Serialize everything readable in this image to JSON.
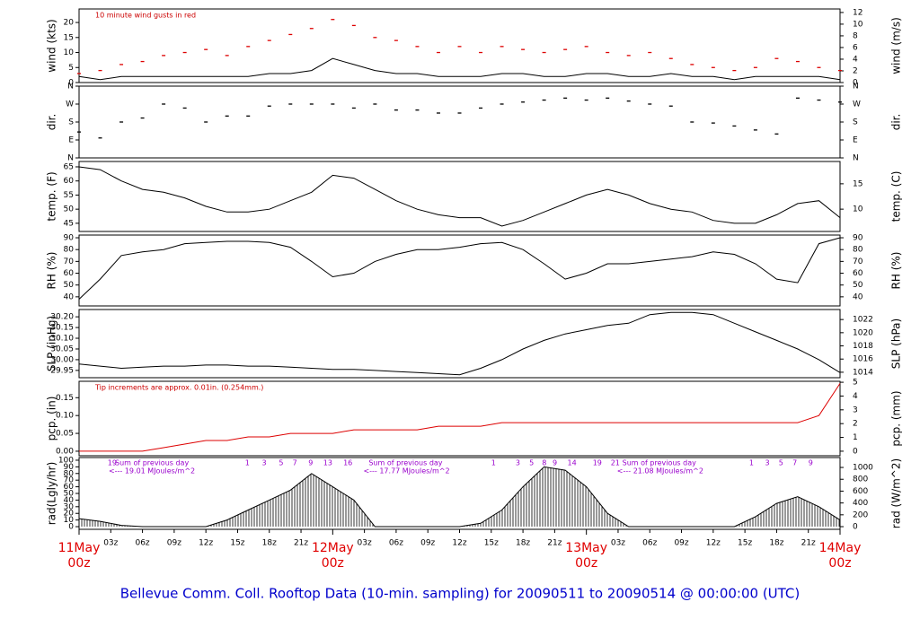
{
  "title": "Bellevue Comm. Coll. Rooftop Data (10-min. sampling) for 20090511  to  20090514 @ 00:00:00  (UTC)",
  "time_axis": {
    "x": [
      0,
      2,
      4,
      6,
      8,
      10,
      12,
      14,
      16,
      18,
      20,
      22,
      24,
      26,
      28,
      30,
      32,
      34,
      36,
      38,
      40,
      42,
      44,
      46,
      48,
      50,
      52,
      54,
      56,
      58,
      60,
      62,
      64,
      66,
      68,
      70,
      72
    ],
    "xlim": [
      0,
      72
    ],
    "xticks": [
      {
        "value": 3,
        "label": "03z"
      },
      {
        "value": 6,
        "label": "06z"
      },
      {
        "value": 9,
        "label": "09z"
      },
      {
        "value": 12,
        "label": "12z"
      },
      {
        "value": 15,
        "label": "15z"
      },
      {
        "value": 18,
        "label": "18z"
      },
      {
        "value": 21,
        "label": "21z"
      },
      {
        "value": 27,
        "label": "03z"
      },
      {
        "value": 30,
        "label": "06z"
      },
      {
        "value": 33,
        "label": "09z"
      },
      {
        "value": 36,
        "label": "12z"
      },
      {
        "value": 39,
        "label": "15z"
      },
      {
        "value": 42,
        "label": "18z"
      },
      {
        "value": 45,
        "label": "21z"
      },
      {
        "value": 51,
        "label": "03z"
      },
      {
        "value": 54,
        "label": "06z"
      },
      {
        "value": 57,
        "label": "09z"
      },
      {
        "value": 60,
        "label": "12z"
      },
      {
        "value": 63,
        "label": "15z"
      },
      {
        "value": 66,
        "label": "18z"
      },
      {
        "value": 69,
        "label": "21z"
      }
    ],
    "date_ticks": [
      {
        "value": 0,
        "date": "11May",
        "time": "00z"
      },
      {
        "value": 24,
        "date": "12May",
        "time": "00z"
      },
      {
        "value": 48,
        "date": "13May",
        "time": "00z"
      },
      {
        "value": 72,
        "date": "14May",
        "time": "00z"
      }
    ]
  },
  "chart_data": [
    {
      "type": "line",
      "ylabel": "wind (kts)",
      "y2label": "wind (m/s)",
      "note": "10  minute wind gusts in red",
      "note_color": "#cc0000",
      "ylim": [
        0,
        24.5
      ],
      "yticks": [
        0,
        5,
        10,
        15,
        20
      ],
      "y2lim": [
        0,
        12.6
      ],
      "y2ticks": [
        0,
        2,
        4,
        6,
        8,
        10,
        12
      ],
      "series": [
        {
          "style": "line",
          "color": "#000000",
          "values": [
            2,
            1,
            2,
            2,
            2,
            2,
            2,
            2,
            2,
            3,
            3,
            4,
            8,
            6,
            4,
            3,
            3,
            2,
            2,
            2,
            3,
            3,
            2,
            2,
            3,
            3,
            2,
            2,
            3,
            2,
            2,
            1,
            2,
            2,
            2,
            2,
            1
          ]
        },
        {
          "style": "dash",
          "color": "#dd0000",
          "values": [
            3,
            4,
            6,
            7,
            9,
            10,
            11,
            9,
            12,
            14,
            16,
            18,
            21,
            19,
            15,
            14,
            12,
            10,
            12,
            10,
            12,
            11,
            10,
            11,
            12,
            10,
            9,
            10,
            8,
            6,
            5,
            4,
            5,
            8,
            7,
            5,
            4
          ]
        }
      ]
    },
    {
      "type": "line",
      "ylabel": "dir.",
      "y2label": "dir.",
      "ylim": [
        0,
        360
      ],
      "yticks": [
        {
          "value": 0,
          "label": "N"
        },
        {
          "value": 90,
          "label": "E"
        },
        {
          "value": 180,
          "label": "S"
        },
        {
          "value": 270,
          "label": "W"
        },
        {
          "value": 360,
          "label": "N"
        }
      ],
      "y2lim": [
        0,
        360
      ],
      "y2ticks": [
        {
          "value": 0,
          "label": "N"
        },
        {
          "value": 90,
          "label": "E"
        },
        {
          "value": 180,
          "label": "S"
        },
        {
          "value": 270,
          "label": "W"
        },
        {
          "value": 360,
          "label": "N"
        }
      ],
      "series": [
        {
          "style": "dash",
          "color": "#000000",
          "values": [
            130,
            100,
            180,
            200,
            270,
            250,
            180,
            210,
            210,
            260,
            270,
            270,
            270,
            250,
            270,
            240,
            240,
            225,
            225,
            250,
            270,
            280,
            290,
            300,
            290,
            300,
            285,
            270,
            260,
            180,
            175,
            160,
            140,
            120,
            300,
            290,
            280
          ]
        }
      ]
    },
    {
      "type": "line",
      "ylabel": "temp. (F)",
      "y2label": "temp. (C)",
      "ylim": [
        42.1,
        66.9
      ],
      "yticks": [
        45,
        50,
        55,
        60,
        65
      ],
      "y2lim": [
        5.6,
        19.4
      ],
      "y2ticks": [
        10,
        15
      ],
      "series": [
        {
          "style": "line",
          "color": "#000000",
          "values": [
            65,
            64,
            60,
            57,
            56,
            54,
            51,
            49,
            49,
            50,
            53,
            56,
            62,
            61,
            57,
            53,
            50,
            48,
            47,
            47,
            44,
            46,
            49,
            52,
            55,
            57,
            55,
            52,
            50,
            49,
            46,
            45,
            45,
            48,
            52,
            53,
            47
          ]
        }
      ]
    },
    {
      "type": "line",
      "ylabel": "RH (%)",
      "y2label": "RH (%)",
      "ylim": [
        32.3,
        92.3
      ],
      "yticks": [
        40,
        50,
        60,
        70,
        80,
        90
      ],
      "y2lim": [
        32.3,
        92.3
      ],
      "y2ticks": [
        40,
        50,
        60,
        70,
        80,
        90
      ],
      "series": [
        {
          "style": "line",
          "color": "#000000",
          "values": [
            38,
            55,
            75,
            78,
            80,
            85,
            86,
            87,
            87,
            86,
            82,
            70,
            57,
            60,
            70,
            76,
            80,
            80,
            82,
            85,
            86,
            80,
            68,
            55,
            60,
            68,
            68,
            70,
            72,
            74,
            78,
            76,
            68,
            55,
            52,
            85,
            90
          ]
        }
      ]
    },
    {
      "type": "line",
      "ylabel": "SLP (inHg)",
      "y2label": "SLP (hPa)",
      "ylim": [
        29.916,
        30.234
      ],
      "yticks": [
        {
          "value": 29.95,
          "label": "29.95"
        },
        {
          "value": 30.0,
          "label": "30.00"
        },
        {
          "value": 30.05,
          "label": "30.05"
        },
        {
          "value": 30.1,
          "label": "30.10"
        },
        {
          "value": 30.15,
          "label": "30.15"
        },
        {
          "value": 30.2,
          "label": "30.20"
        }
      ],
      "y2lim": [
        1013.17,
        1023.52
      ],
      "y2ticks": [
        1014,
        1016,
        1018,
        1020,
        1022
      ],
      "series": [
        {
          "style": "line",
          "color": "#000000",
          "values": [
            29.98,
            29.97,
            29.96,
            29.965,
            29.97,
            29.97,
            29.975,
            29.975,
            29.97,
            29.97,
            29.965,
            29.96,
            29.955,
            29.955,
            29.95,
            29.945,
            29.94,
            29.935,
            29.93,
            29.96,
            30.0,
            30.05,
            30.09,
            30.12,
            30.14,
            30.16,
            30.17,
            30.21,
            30.22,
            30.22,
            30.21,
            30.17,
            30.13,
            30.09,
            30.05,
            30.0,
            29.94
          ]
        }
      ]
    },
    {
      "type": "line",
      "ylabel": "pcp. (in)",
      "y2label": "pcp. (mm)",
      "note": "Tip increments are approx. 0.01in. (0.254mm.)",
      "note_color": "#cc0000",
      "ylim": [
        -0.0127,
        0.196
      ],
      "yticks": [
        {
          "value": 0,
          "label": "0.00"
        },
        {
          "value": 0.05,
          "label": "0.05"
        },
        {
          "value": 0.1,
          "label": "0.10"
        },
        {
          "value": 0.15,
          "label": "0.15"
        }
      ],
      "y2lim": [
        -0.33,
        5.07
      ],
      "y2ticks": [
        0,
        1,
        2,
        3,
        4,
        5
      ],
      "series": [
        {
          "style": "line",
          "color": "#dd0000",
          "values": [
            0,
            0,
            0,
            0,
            0.01,
            0.02,
            0.03,
            0.03,
            0.04,
            0.04,
            0.05,
            0.05,
            0.05,
            0.06,
            0.06,
            0.06,
            0.06,
            0.07,
            0.07,
            0.07,
            0.08,
            0.08,
            0.08,
            0.08,
            0.08,
            0.08,
            0.08,
            0.08,
            0.08,
            0.08,
            0.08,
            0.08,
            0.08,
            0.08,
            0.08,
            0.1,
            0.19
          ]
        }
      ]
    },
    {
      "type": "line",
      "ylabel": "rad(Lgly/hr)",
      "y2label": "rad (W/m^2)",
      "ylim": [
        -4,
        104
      ],
      "yticks": [
        0,
        10,
        20,
        30,
        40,
        50,
        60,
        70,
        80,
        90,
        100
      ],
      "y2lim": [
        -45,
        1167
      ],
      "y2ticks": [
        0,
        200,
        400,
        600,
        800,
        1000
      ],
      "notes_color": "#9900cc",
      "notes": [
        {
          "x": 2.7,
          "row": 1,
          "label": "19"
        },
        {
          "x": 3.4,
          "row": 1,
          "label": "Sum of previous day"
        },
        {
          "x": 2.8,
          "row": 2,
          "label": "<--- 19.01 MJoules/m^2"
        },
        {
          "x": 15.7,
          "row": 1,
          "label": "1"
        },
        {
          "x": 17.3,
          "row": 1,
          "label": "3"
        },
        {
          "x": 18.9,
          "row": 1,
          "label": "5"
        },
        {
          "x": 20.2,
          "row": 1,
          "label": "7"
        },
        {
          "x": 21.7,
          "row": 1,
          "label": "9"
        },
        {
          "x": 23.1,
          "row": 1,
          "label": "13"
        },
        {
          "x": 25.0,
          "row": 1,
          "label": "16"
        },
        {
          "x": 27.4,
          "row": 1,
          "label": "Sum of previous day"
        },
        {
          "x": 26.9,
          "row": 2,
          "label": "<--- 17.77 MJoules/m^2"
        },
        {
          "x": 39.0,
          "row": 1,
          "label": "1"
        },
        {
          "x": 41.3,
          "row": 1,
          "label": "3"
        },
        {
          "x": 42.6,
          "row": 1,
          "label": "5"
        },
        {
          "x": 43.8,
          "row": 1,
          "label": "8"
        },
        {
          "x": 44.8,
          "row": 1,
          "label": "9"
        },
        {
          "x": 46.2,
          "row": 1,
          "label": "14"
        },
        {
          "x": 48.6,
          "row": 1,
          "label": "19"
        },
        {
          "x": 50.3,
          "row": 1,
          "label": "21"
        },
        {
          "x": 51.4,
          "row": 1,
          "label": "Sum of previous day"
        },
        {
          "x": 50.9,
          "row": 2,
          "label": "<--- 21.08 MJoules/m^2"
        },
        {
          "x": 63.4,
          "row": 1,
          "label": "1"
        },
        {
          "x": 64.9,
          "row": 1,
          "label": "3"
        },
        {
          "x": 66.2,
          "row": 1,
          "label": "5"
        },
        {
          "x": 67.5,
          "row": 1,
          "label": "7"
        },
        {
          "x": 69.0,
          "row": 1,
          "label": "9"
        }
      ],
      "series": [
        {
          "style": "hatch",
          "color": "#000000",
          "values": [
            12,
            8,
            2,
            0,
            0,
            0,
            0,
            10,
            25,
            40,
            55,
            80,
            60,
            40,
            0,
            0,
            0,
            0,
            0,
            5,
            25,
            60,
            90,
            85,
            60,
            20,
            0,
            0,
            0,
            0,
            0,
            0,
            15,
            35,
            45,
            30,
            10
          ]
        }
      ]
    }
  ]
}
